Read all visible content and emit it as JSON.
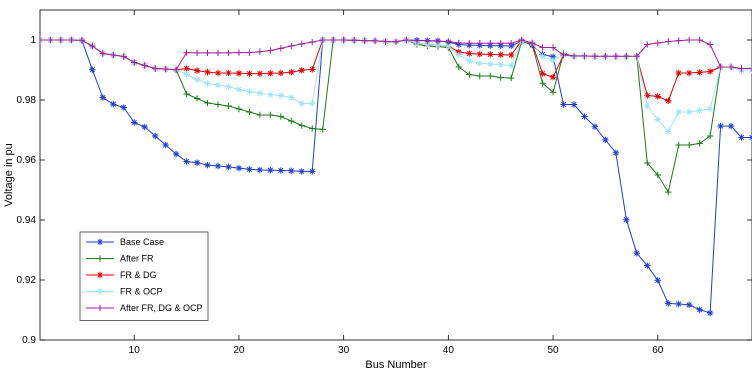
{
  "chart_data": {
    "type": "line",
    "title": "",
    "xlabel": "Bus Number",
    "ylabel": "Voltage in pu",
    "xlim": [
      1,
      69
    ],
    "ylim": [
      0.9,
      1.01
    ],
    "x_ticks": [
      10,
      20,
      30,
      40,
      50,
      60
    ],
    "y_ticks": [
      0.9,
      0.92,
      0.94,
      0.96,
      0.98,
      1
    ],
    "y_tick_labels": [
      "0.9",
      "0.92",
      "0.94",
      "0.96",
      "0.98",
      "1"
    ],
    "grid": false,
    "legend_position": "bottom-left",
    "x": [
      1,
      2,
      3,
      4,
      5,
      6,
      7,
      8,
      9,
      10,
      11,
      12,
      13,
      14,
      15,
      16,
      17,
      18,
      19,
      20,
      21,
      22,
      23,
      24,
      25,
      26,
      27,
      28,
      29,
      30,
      31,
      32,
      33,
      34,
      35,
      36,
      37,
      38,
      39,
      40,
      41,
      42,
      43,
      44,
      45,
      46,
      47,
      48,
      49,
      50,
      51,
      52,
      53,
      54,
      55,
      56,
      57,
      58,
      59,
      60,
      61,
      62,
      63,
      64,
      65,
      66,
      67,
      68,
      69
    ],
    "series": [
      {
        "name": "Base Case",
        "color": "#1f3fcf",
        "marker": "star",
        "values": [
          1,
          1,
          1,
          1,
          0.9999,
          0.9901,
          0.9808,
          0.9786,
          0.9775,
          0.9725,
          0.971,
          0.968,
          0.965,
          0.962,
          0.9595,
          0.9591,
          0.9583,
          0.958,
          0.9577,
          0.9573,
          0.9569,
          0.9567,
          0.9566,
          0.9565,
          0.9564,
          0.9562,
          0.9562,
          1,
          1,
          1,
          0.9999,
          0.9998,
          0.9997,
          0.9995,
          0.9994,
          1,
          0.9999,
          0.9998,
          0.9997,
          0.9993,
          0.9985,
          0.9983,
          0.9982,
          0.9981,
          0.9981,
          0.998,
          0.9997,
          0.9983,
          0.9952,
          0.9944,
          0.9785,
          0.9785,
          0.9745,
          0.9711,
          0.9667,
          0.9624,
          0.9401,
          0.9289,
          0.9248,
          0.9199,
          0.9122,
          0.912,
          0.9117,
          0.9101,
          0.909,
          0.9713,
          0.9713,
          0.9675,
          0.9675
        ]
      },
      {
        "name": "After FR",
        "color": "#1a7a1a",
        "marker": "plus",
        "values": [
          1,
          1,
          1,
          1,
          0.9999,
          0.998,
          0.9955,
          0.995,
          0.9945,
          0.9925,
          0.9915,
          0.9905,
          0.9903,
          0.9901,
          0.982,
          0.9805,
          0.979,
          0.9785,
          0.978,
          0.977,
          0.976,
          0.975,
          0.975,
          0.9745,
          0.973,
          0.9715,
          0.9705,
          0.9702,
          1,
          1,
          0.9999,
          0.9998,
          0.9997,
          0.9995,
          0.9994,
          1,
          0.9985,
          0.998,
          0.9978,
          0.9975,
          0.991,
          0.9885,
          0.988,
          0.988,
          0.9875,
          0.9873,
          0.9995,
          0.9985,
          0.9856,
          0.9826,
          0.9955,
          0.9945,
          0.9945,
          0.9945,
          0.9945,
          0.9945,
          0.9945,
          0.9945,
          0.959,
          0.955,
          0.9493,
          0.965,
          0.965,
          0.9655,
          0.968,
          0.991,
          0.991,
          0.99,
          0.99
        ]
      },
      {
        "name": "FR & DG",
        "color": "#e00000",
        "marker": "star",
        "values": [
          1,
          1,
          1,
          1,
          0.9999,
          0.998,
          0.9955,
          0.995,
          0.9945,
          0.9925,
          0.9915,
          0.9905,
          0.9903,
          0.9901,
          0.9905,
          0.9898,
          0.9893,
          0.989,
          0.989,
          0.9889,
          0.9888,
          0.9888,
          0.9889,
          0.989,
          0.9893,
          0.9899,
          0.9902,
          1,
          1,
          1,
          0.9999,
          0.9998,
          0.9997,
          0.9995,
          0.9994,
          1,
          0.999,
          0.9985,
          0.9983,
          0.998,
          0.996,
          0.9955,
          0.9953,
          0.9952,
          0.9951,
          0.995,
          0.9998,
          0.999,
          0.9888,
          0.9876,
          0.995,
          0.9945,
          0.9945,
          0.9945,
          0.9945,
          0.9945,
          0.9945,
          0.9945,
          0.9815,
          0.9812,
          0.9797,
          0.989,
          0.989,
          0.9892,
          0.9895,
          0.991,
          0.991,
          0.99,
          0.99
        ]
      },
      {
        "name": "FR & OCP",
        "color": "#9fe4f7",
        "marker": "star",
        "values": [
          1,
          1,
          1,
          1,
          0.9999,
          0.998,
          0.9955,
          0.995,
          0.9945,
          0.9925,
          0.9915,
          0.9905,
          0.9903,
          0.9901,
          0.9885,
          0.9868,
          0.9855,
          0.985,
          0.9845,
          0.9835,
          0.9828,
          0.9822,
          0.9818,
          0.9815,
          0.9808,
          0.9788,
          0.9789,
          1,
          1,
          1,
          0.9999,
          0.9998,
          0.9997,
          0.9995,
          0.9994,
          1,
          0.999,
          0.9985,
          0.9983,
          0.998,
          0.995,
          0.993,
          0.9922,
          0.992,
          0.9918,
          0.9915,
          0.9998,
          0.999,
          0.9945,
          0.9932,
          0.995,
          0.9945,
          0.9945,
          0.9945,
          0.9945,
          0.9945,
          0.9945,
          0.9945,
          0.978,
          0.9735,
          0.9695,
          0.976,
          0.976,
          0.9765,
          0.977,
          0.991,
          0.991,
          0.99,
          0.99
        ]
      },
      {
        "name": "After FR, DG & OCP",
        "color": "#a020a0",
        "marker": "plus",
        "values": [
          1,
          1,
          1,
          1,
          0.9999,
          0.998,
          0.9955,
          0.995,
          0.9945,
          0.9925,
          0.9915,
          0.9905,
          0.9903,
          0.9901,
          0.9958,
          0.9957,
          0.9957,
          0.9957,
          0.9957,
          0.9958,
          0.9958,
          0.9961,
          0.9965,
          0.9972,
          0.998,
          0.9987,
          0.9993,
          1,
          1,
          1,
          0.9999,
          0.9998,
          0.9997,
          0.9995,
          0.9994,
          1,
          0.9998,
          0.9997,
          0.9996,
          0.9995,
          0.999,
          0.9989,
          0.9989,
          0.9989,
          0.9989,
          0.9989,
          1,
          0.999,
          0.9975,
          0.9975,
          0.995,
          0.9947,
          0.9947,
          0.9946,
          0.9946,
          0.9946,
          0.9946,
          0.9946,
          0.9985,
          0.999,
          0.9995,
          0.9998,
          1,
          1,
          0.9985,
          0.991,
          0.991,
          0.9905,
          0.9905
        ]
      }
    ]
  }
}
